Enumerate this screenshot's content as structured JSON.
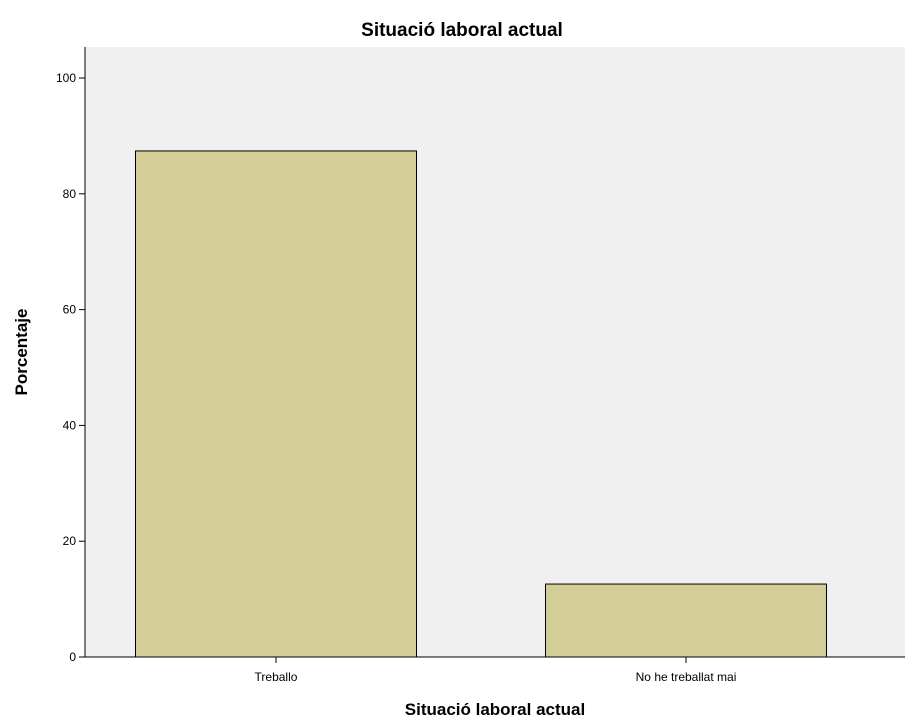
{
  "chart_data": {
    "type": "bar",
    "title": "Situació laboral actual",
    "xlabel": "Situació laboral actual",
    "ylabel": "Porcentaje",
    "categories": [
      "Treballo",
      "No he treballat mai"
    ],
    "values": [
      87.4,
      12.6
    ],
    "ylim": [
      0,
      100
    ],
    "yticks": [
      0,
      20,
      40,
      60,
      80,
      100
    ],
    "grid": false,
    "legend": "none",
    "colors": {
      "plot_background": "#f0f0f0",
      "bar_fill": "#d3ce97",
      "bar_stroke": "#000000"
    }
  }
}
